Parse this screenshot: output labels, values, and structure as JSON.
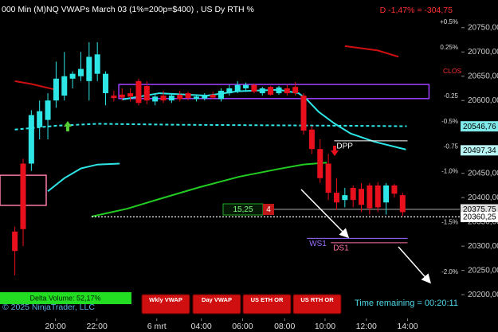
{
  "chart_data": {
    "type": "candlestick",
    "title": "000 Min (M)NQ VWAPs March 03 (1%=200p=$400) , US Dy RTH %",
    "change_label": "D -1,47% = -304,75",
    "x": [
      0,
      1,
      2,
      3,
      4,
      5,
      6,
      7,
      8,
      9,
      10,
      11,
      12,
      13,
      14,
      15,
      16,
      17,
      18,
      19,
      20,
      21,
      22,
      23,
      24,
      25,
      26,
      27,
      28,
      29,
      30,
      31,
      32,
      33,
      34,
      35,
      36,
      37,
      38,
      39,
      40,
      41,
      42,
      43,
      44,
      45,
      46,
      47
    ],
    "open": [
      20330,
      20470,
      20470,
      20545,
      20560,
      20600,
      20610,
      20645,
      20650,
      20640,
      20655,
      20615,
      20610,
      20612,
      20615,
      20640,
      20630,
      20598,
      20610,
      20600,
      20612,
      20615,
      20603,
      20604,
      20612,
      20603,
      20615,
      20620,
      20625,
      20632,
      20615,
      20628,
      20615,
      20625,
      20628,
      20610,
      20540,
      20500,
      20470,
      20410,
      20395,
      20420,
      20418,
      20425,
      20425,
      20390,
      20425,
      20405
    ],
    "high": [
      20340,
      20480,
      20580,
      20600,
      20615,
      20680,
      20700,
      20660,
      20700,
      20720,
      20720,
      20660,
      20620,
      20625,
      20625,
      20645,
      20640,
      20612,
      20620,
      20615,
      20620,
      20618,
      20612,
      20615,
      20618,
      20625,
      20632,
      20640,
      20637,
      20635,
      20628,
      20630,
      20630,
      20632,
      20638,
      20615,
      20548,
      20520,
      20490,
      20440,
      20420,
      20425,
      20430,
      20430,
      20432,
      20430,
      20428,
      20410
    ],
    "low": [
      20240,
      20300,
      20455,
      20520,
      20520,
      20585,
      20600,
      20625,
      20640,
      20600,
      20640,
      20590,
      20598,
      20600,
      20598,
      20590,
      20592,
      20590,
      20595,
      20595,
      20598,
      20600,
      20598,
      20600,
      20603,
      20598,
      20610,
      20615,
      20618,
      20615,
      20610,
      20610,
      20612,
      20610,
      20610,
      20530,
      20490,
      20430,
      20395,
      20375,
      20380,
      20380,
      20370,
      20365,
      20370,
      20365,
      20400,
      20362
    ],
    "close": [
      20290,
      20335,
      20570,
      20578,
      20600,
      20645,
      20650,
      20655,
      20665,
      20690,
      20695,
      20655,
      20605,
      20606,
      20608,
      20595,
      20600,
      20608,
      20600,
      20610,
      20603,
      20605,
      20608,
      20610,
      20606,
      20620,
      20625,
      20632,
      20632,
      20618,
      20625,
      20612,
      20627,
      20615,
      20615,
      20538,
      20500,
      20440,
      20410,
      20390,
      20405,
      20395,
      20385,
      20378,
      20380,
      20425,
      20408,
      20370
    ],
    "up_color": "#2ee6e6",
    "down_color": "#e8101c",
    "xlim": [
      -1.8,
      51.8
    ],
    "xticks": [
      {
        "value": 4.93,
        "label": "20:00"
      },
      {
        "value": 9.95,
        "label": "22:00"
      },
      {
        "value": 17.2,
        "label": "6 mrt"
      },
      {
        "value": 22.6,
        "label": "04:00"
      },
      {
        "value": 27.6,
        "label": "06:00"
      },
      {
        "value": 32.7,
        "label": "08:00"
      },
      {
        "value": 37.6,
        "label": "10:00"
      },
      {
        "value": 42.6,
        "label": "12:00"
      },
      {
        "value": 47.6,
        "label": "14:00"
      }
    ],
    "ylim": [
      20151,
      20807
    ],
    "yticks": [
      {
        "value": 20200,
        "label": "20200,00"
      },
      {
        "value": 20250,
        "label": "20250,00"
      },
      {
        "value": 20300,
        "label": "20300,00"
      },
      {
        "value": 20350,
        "label": "20350,00"
      },
      {
        "value": 20400,
        "label": "20400,00"
      },
      {
        "value": 20450,
        "label": "20450,00"
      },
      {
        "value": 20500,
        "label": "20500,00"
      },
      {
        "value": 20550,
        "label": "20550,00"
      },
      {
        "value": 20600,
        "label": "20600,00"
      },
      {
        "value": 20650,
        "label": "20650,00"
      },
      {
        "value": 20700,
        "label": "20700,00"
      },
      {
        "value": 20750,
        "label": "20750,00"
      }
    ],
    "pct_ticks": [
      {
        "value": 20761,
        "label": "+0.5%"
      },
      {
        "value": 20709,
        "label": "0.25%"
      },
      {
        "value": 20609,
        "label": "-0.25"
      },
      {
        "value": 20556,
        "label": "-0.5%"
      },
      {
        "value": 20505,
        "label": "-0.75"
      },
      {
        "value": 20454,
        "label": "-1.0%"
      },
      {
        "value": 20349,
        "label": "-1.5%"
      },
      {
        "value": 20246,
        "label": "-2.0%"
      }
    ],
    "close_label": {
      "value": 20660,
      "label": "CLOS"
    },
    "lines": [
      {
        "color": "#d01010",
        "dash": false,
        "x": [
          0,
          2,
          5
        ],
        "values": [
          20640,
          20634,
          20622
        ]
      },
      {
        "color": "#d01010",
        "dash": false,
        "x": [
          40,
          44,
          46.5
        ],
        "values": [
          20712,
          20703,
          20690
        ]
      },
      {
        "color": "#2ee6e6",
        "dash": false,
        "x": [
          4,
          6,
          8,
          10,
          12.7
        ],
        "values": [
          20413,
          20440,
          20460,
          20468,
          20470
        ]
      },
      {
        "color": "#2ee6e6",
        "dash": false,
        "x": [
          13,
          17.5,
          23.3,
          27,
          32,
          34.4,
          35.4,
          36.8,
          38.7,
          40.7,
          43.6,
          47.4
        ],
        "values": [
          20602,
          20615,
          20610,
          20619,
          20622,
          20615,
          20602,
          20577,
          20553,
          20532,
          20515,
          20499
        ]
      },
      {
        "color": "#2ee6e6",
        "dash": true,
        "x": [
          0,
          5,
          10,
          20,
          30,
          40,
          47.5
        ],
        "values": [
          20540,
          20548,
          20552,
          20550,
          20549,
          20548,
          20547
        ]
      },
      {
        "color": "#22cc22",
        "dash": false,
        "x": [
          9.3,
          13.6,
          17.5,
          22.3,
          27.2,
          32,
          34.9,
          37.8
        ],
        "values": [
          20361,
          20377,
          20397,
          20421,
          20443,
          20459,
          20468,
          20472
        ]
      }
    ],
    "horizontal_lines": [
      {
        "value": 20375.75,
        "label": "20375,75",
        "color": "#999999",
        "dash": false,
        "from": 25.2,
        "tag_color": "#dddddd"
      },
      {
        "value": 20360.25,
        "label": "20360,25",
        "color": "#ffffff",
        "dash": true,
        "from": 9.3,
        "tag_color": "#ffffff"
      }
    ],
    "price_tags": [
      {
        "value": 20546.76,
        "label": "20546,76",
        "tag_color": "#7fe8e8"
      },
      {
        "value": 20497.34,
        "label": "20497,34",
        "tag_color": "#b8f4f4"
      }
    ],
    "pivots": [
      {
        "name": "DPP",
        "value": 20517,
        "from": 38.7,
        "to": 47.6,
        "color": "#ffffff"
      },
      {
        "name": "WS1",
        "value": 20316,
        "from": 35.4,
        "to": 47.6,
        "color": "#9a6cff"
      },
      {
        "name": "DS1",
        "value": 20307,
        "from": 38.3,
        "to": 47.6,
        "color": "#ff6fa8"
      }
    ],
    "zones": [
      {
        "low": 20604,
        "high": 20633,
        "from": 12.6,
        "to": 50.2,
        "color": "#a040ff"
      },
      {
        "low": 20384,
        "high": 20446,
        "from": -1.8,
        "to": 3.8,
        "color": "#ff7aa8"
      }
    ],
    "order_labels": [
      "15,25",
      "4"
    ],
    "buttons": [
      "Wkly VWAP",
      "Day VWAP",
      "US ETH OR",
      "US RTH OR"
    ],
    "delta_volume": "Delta Volume: 52,17%",
    "copyright": "© 2025 NinjaTrader, LLC",
    "time_remaining": "Time remaining = 00:20:11"
  }
}
